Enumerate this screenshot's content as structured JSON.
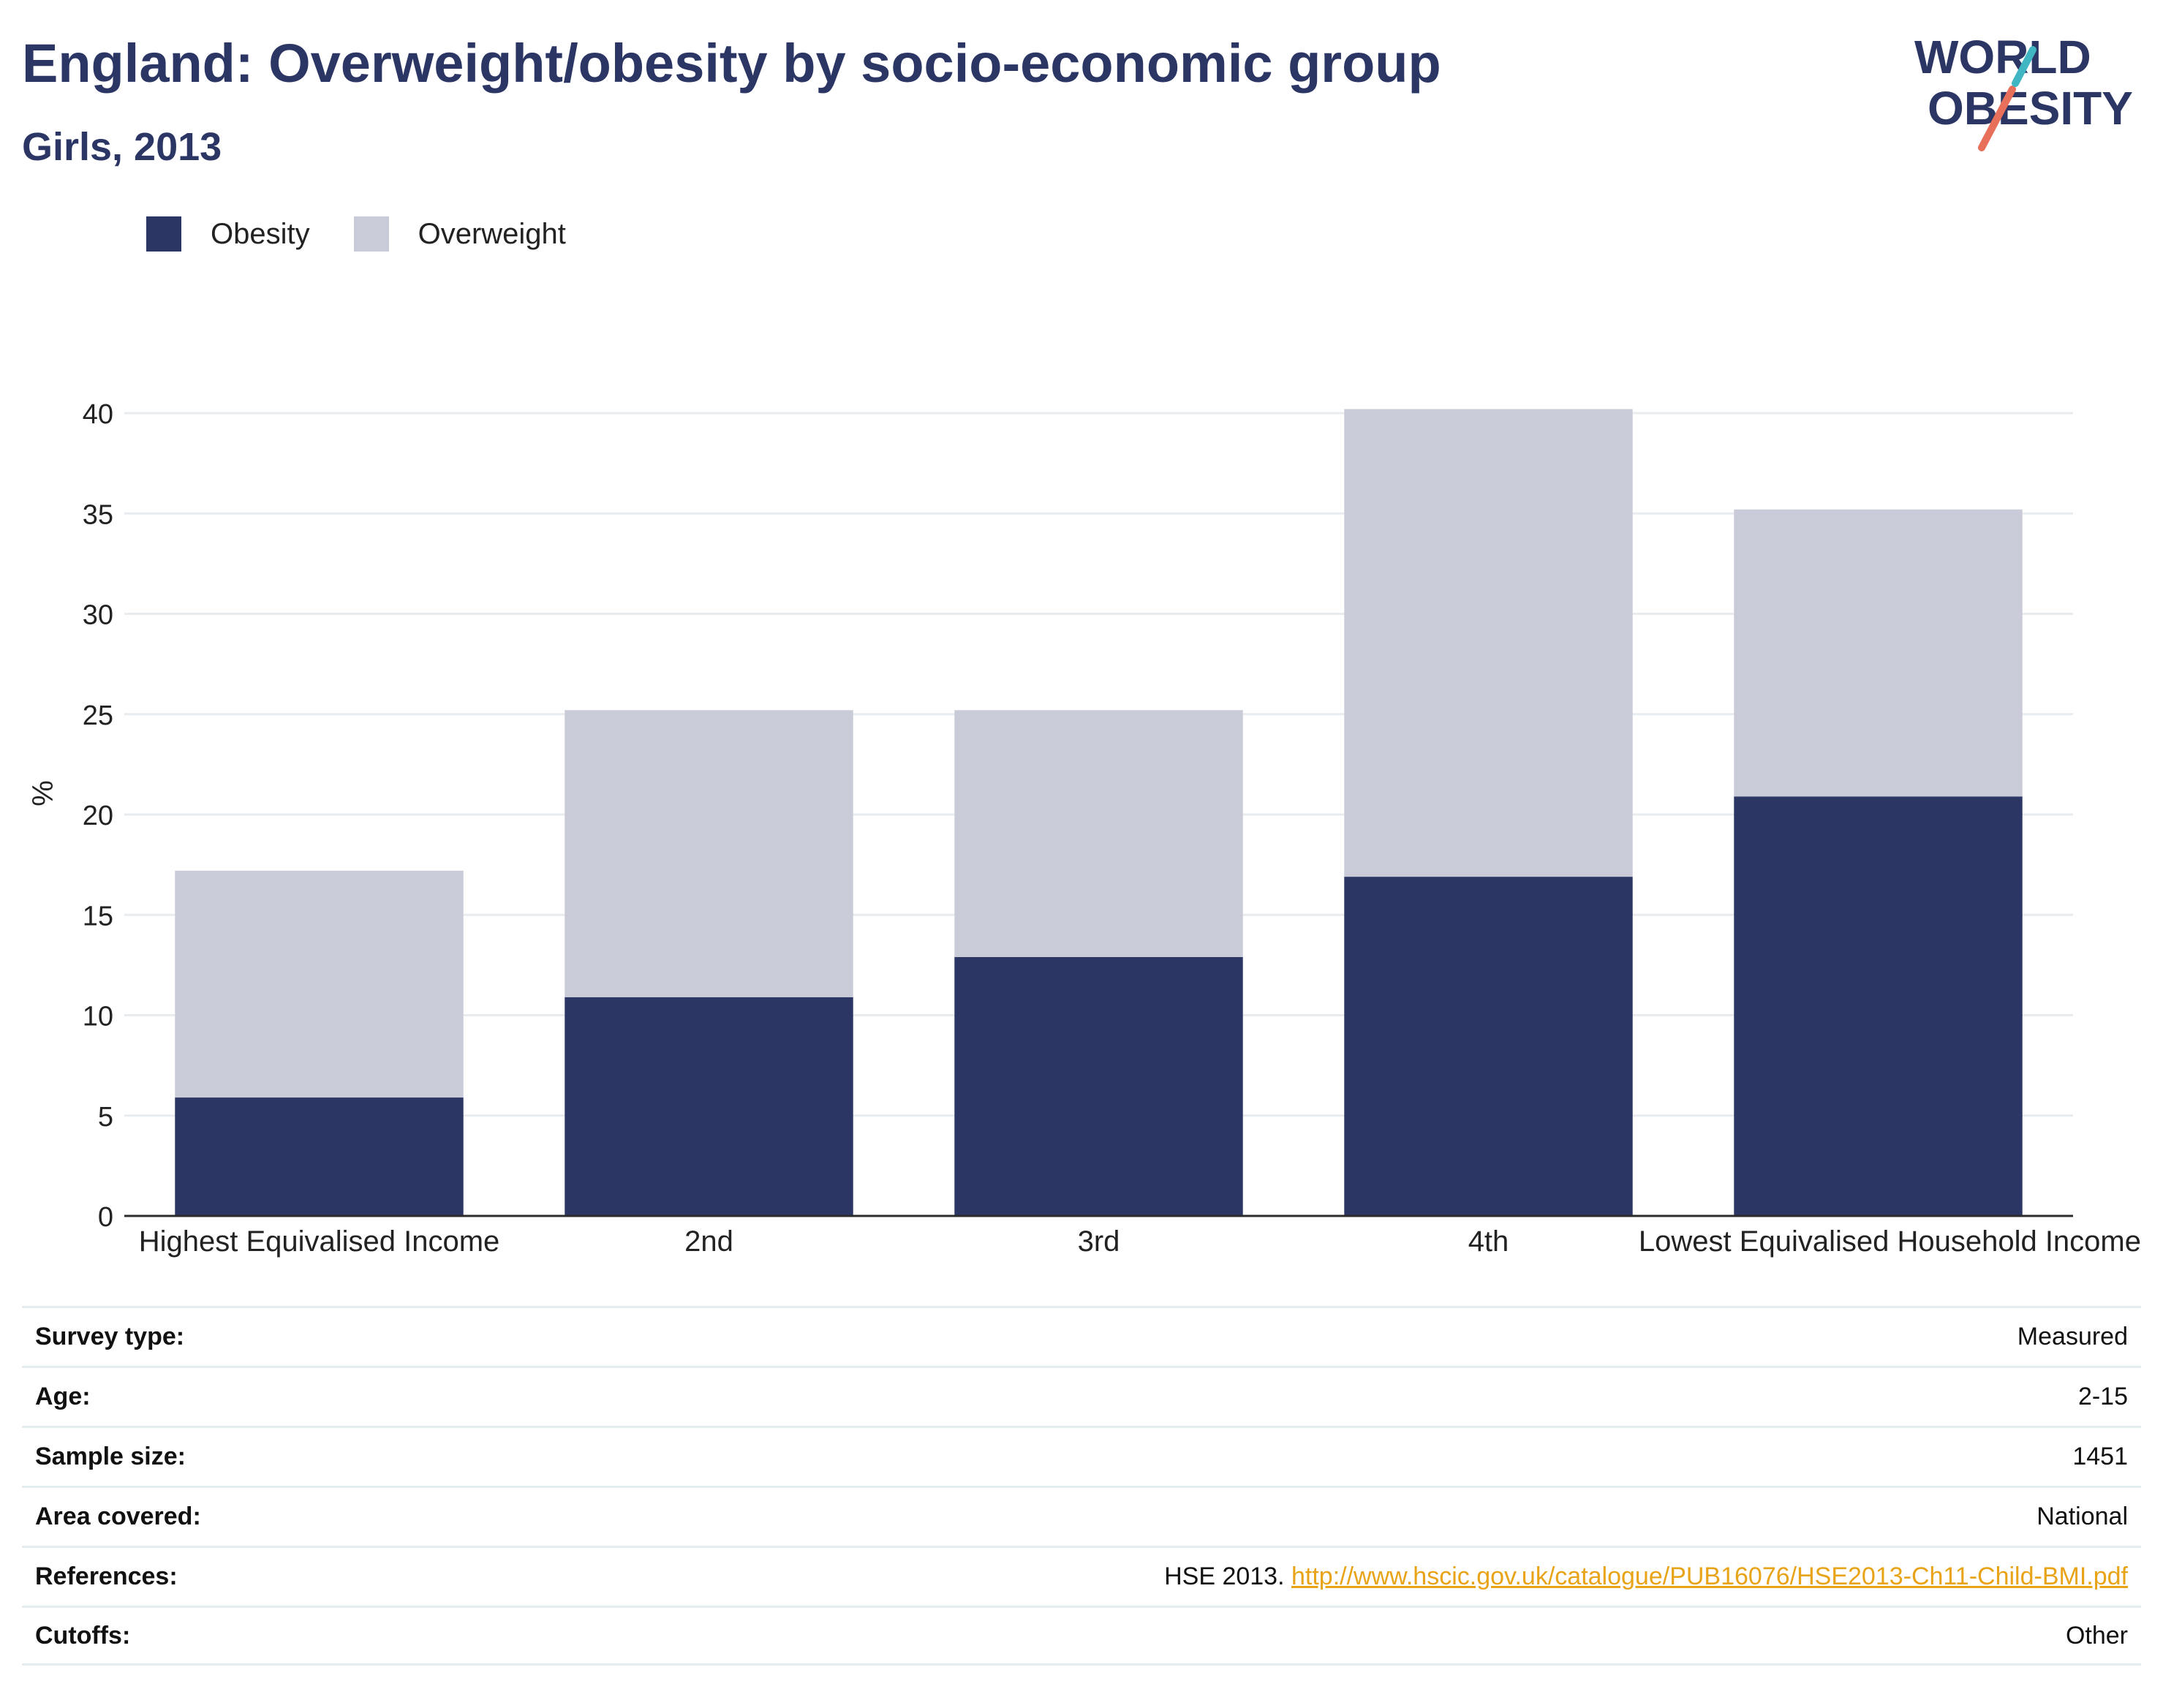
{
  "title": "England: Overweight/obesity by socio-economic group",
  "subtitle": "Girls, 2013",
  "logo": {
    "line1": "WORLD",
    "line2": "OBESITY"
  },
  "legend": [
    {
      "label": "Obesity",
      "color": "#2b3664"
    },
    {
      "label": "Overweight",
      "color": "#c9ccd8"
    }
  ],
  "chart_data": {
    "type": "bar",
    "stacked": true,
    "categories": [
      "Highest Equivalised Income",
      "2nd",
      "3rd",
      "4th",
      "Lowest Equivalised Household Income"
    ],
    "series": [
      {
        "name": "Obesity",
        "color": "#2b3664",
        "values": [
          5.9,
          10.9,
          12.9,
          16.9,
          20.9
        ]
      },
      {
        "name": "Overweight",
        "color": "#c9ccd8",
        "values": [
          11.3,
          14.3,
          12.3,
          23.3,
          14.3
        ]
      }
    ],
    "ylabel": "%",
    "ylim": [
      0,
      40
    ],
    "yticks": [
      0,
      5,
      10,
      15,
      20,
      25,
      30,
      35,
      40
    ],
    "grid": true
  },
  "info": [
    {
      "label": "Survey type:",
      "value": "Measured"
    },
    {
      "label": "Age:",
      "value": "2-15"
    },
    {
      "label": "Sample size:",
      "value": "1451"
    },
    {
      "label": "Area covered:",
      "value": "National"
    },
    {
      "label": "References:",
      "value": "HSE 2013.",
      "link": "http://www.hscic.gov.uk/catalogue/PUB16076/HSE2013-Ch11-Child-BMI.pdf"
    },
    {
      "label": "Cutoffs:",
      "value": "Other"
    }
  ]
}
